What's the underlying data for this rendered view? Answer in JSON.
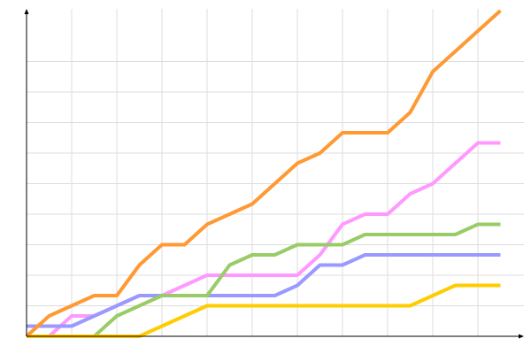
{
  "chart_data": {
    "type": "line",
    "title": "",
    "xlabel": "",
    "ylabel": "",
    "xlim": [
      0,
      22
    ],
    "ylim": [
      0,
      32.2
    ],
    "grid": true,
    "x_grid_step": 2,
    "y_grid_step": 3,
    "x": [
      0,
      1,
      2,
      3,
      4,
      5,
      6,
      7,
      8,
      9,
      10,
      11,
      12,
      13,
      14,
      15,
      16,
      17,
      18,
      19,
      20,
      21
    ],
    "series": [
      {
        "color": "#ff99ff",
        "values": [
          0,
          0,
          2,
          2,
          3,
          4,
          4,
          5,
          6,
          6,
          6,
          6,
          6,
          8,
          11,
          12,
          12,
          14,
          15,
          17,
          19,
          19
        ]
      },
      {
        "color": "#9999ff",
        "values": [
          1,
          1,
          1,
          2,
          3,
          4,
          4,
          4,
          4,
          4,
          4,
          4,
          5,
          7,
          7,
          8,
          8,
          8,
          8,
          8,
          8,
          8
        ]
      },
      {
        "color": "#99cc66",
        "values": [
          0,
          0,
          0,
          0,
          2,
          3,
          4,
          4,
          4,
          7,
          8,
          8,
          9,
          9,
          9,
          10,
          10,
          10,
          10,
          10,
          11,
          11
        ]
      },
      {
        "color": "#ffcc00",
        "values": [
          0,
          0,
          0,
          0,
          0,
          0,
          1,
          2,
          3,
          3,
          3,
          3,
          3,
          3,
          3,
          3,
          3,
          3,
          4,
          5,
          5,
          5
        ]
      },
      {
        "color": "#ff9933",
        "values": [
          0,
          2,
          3,
          4,
          4,
          7,
          9,
          9,
          11,
          12,
          13,
          15,
          17,
          18,
          20,
          20,
          20,
          22,
          26,
          28,
          30,
          32
        ]
      }
    ]
  }
}
